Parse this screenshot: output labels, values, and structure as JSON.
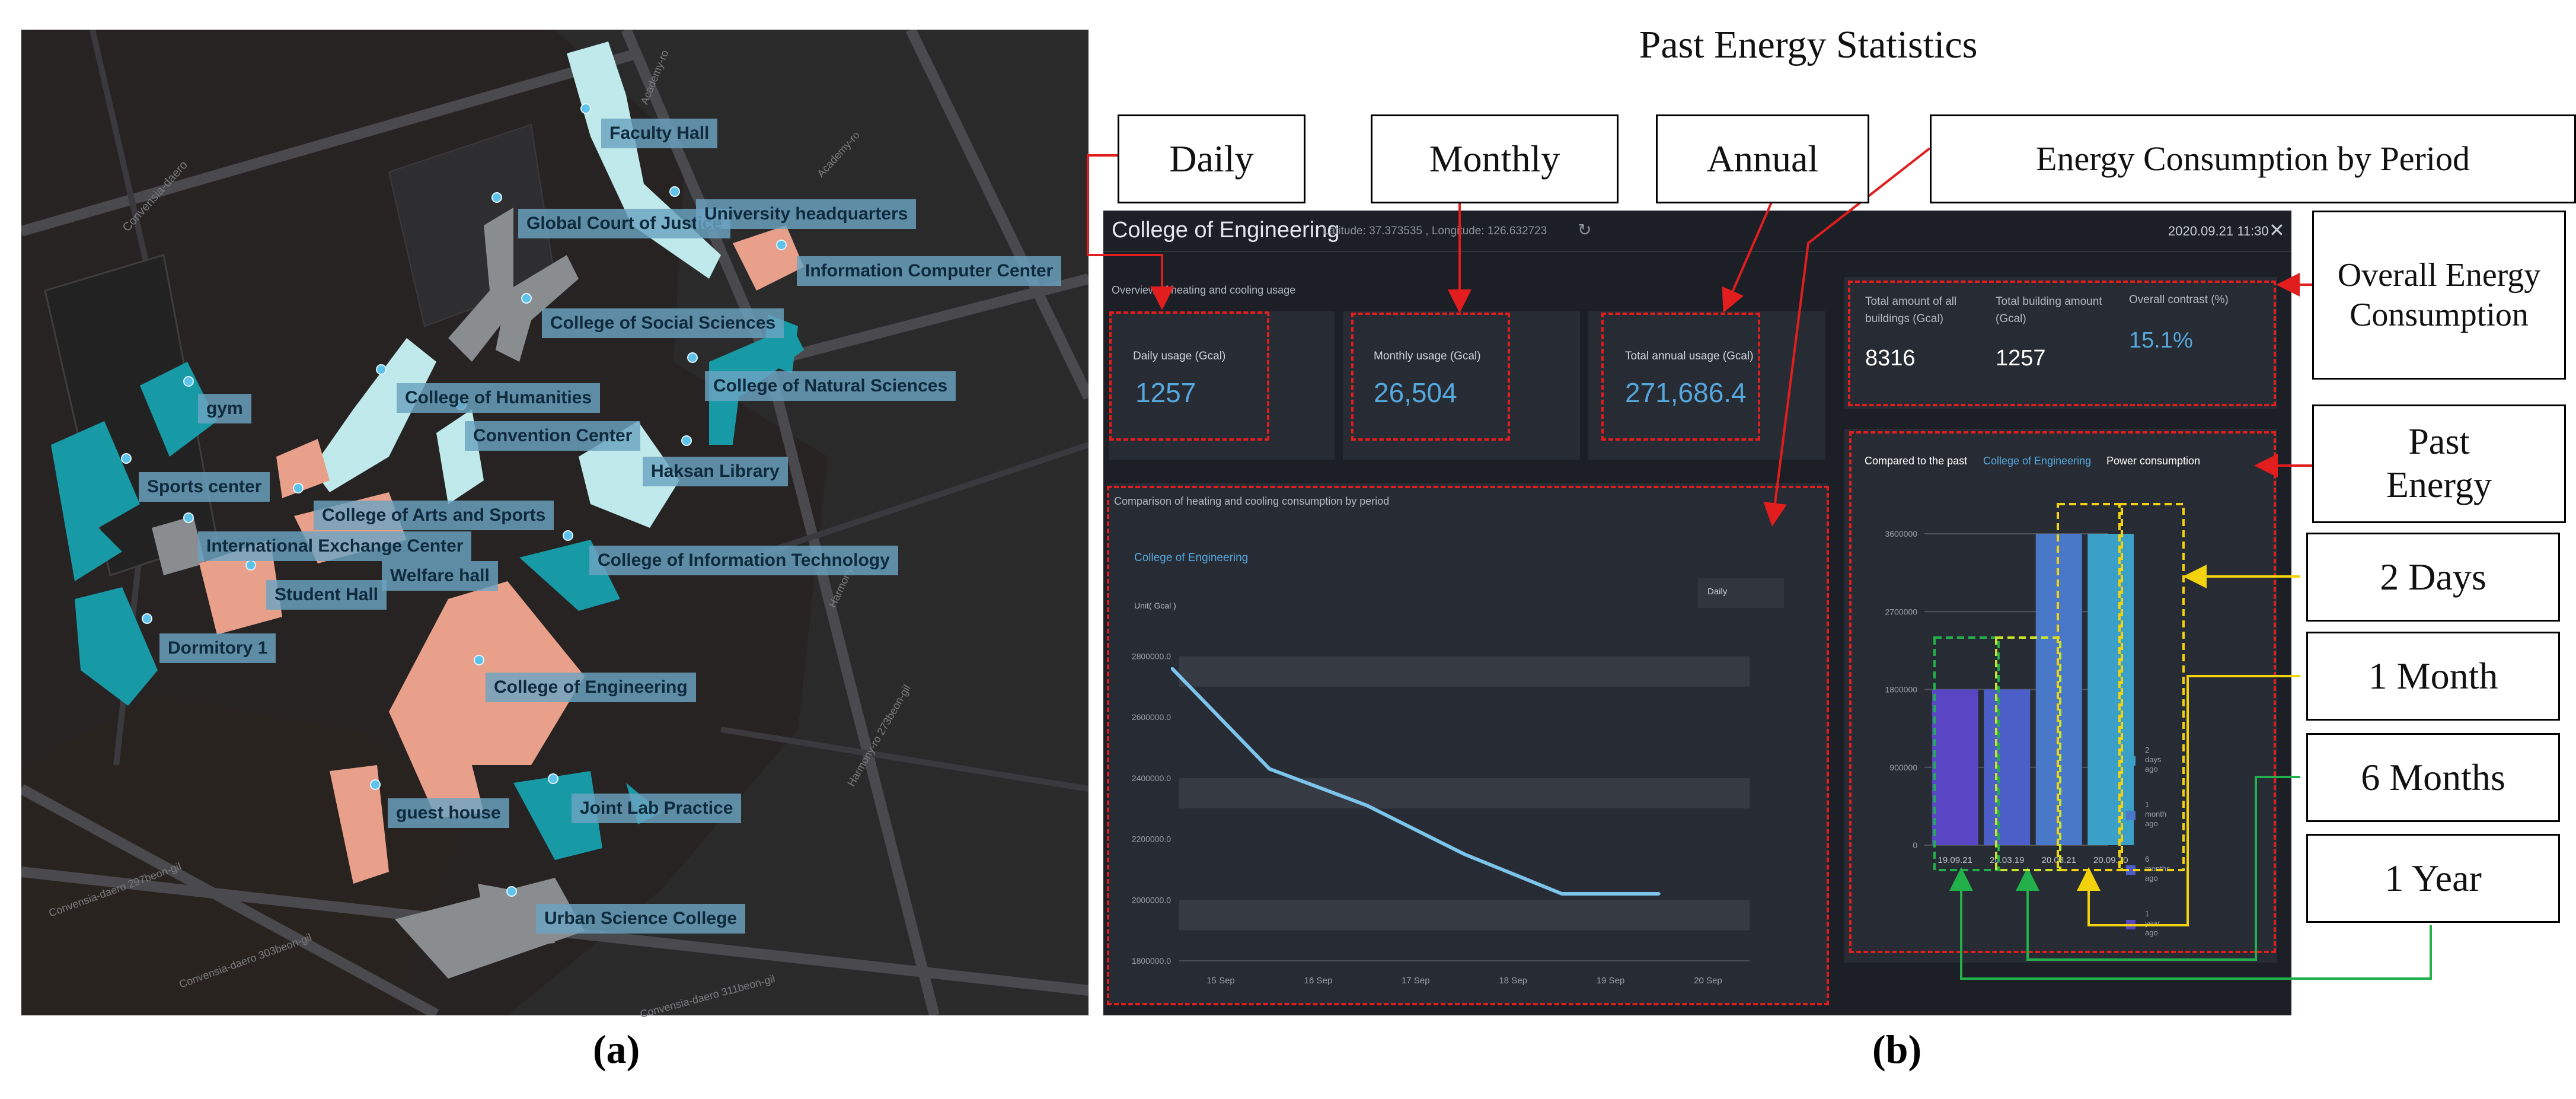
{
  "figure_title": "Past Energy Statistics",
  "panel_labels": {
    "a": "(a)",
    "b": "(b)"
  },
  "map": {
    "street_labels": [
      "Academy-ro",
      "Academy-ro",
      "Convensia-daero",
      "Harmony-ro",
      "Harmony-ro 273beon-gil",
      "Convensia-daero 297beon-gil",
      "Convensia-daero 303beon-gil",
      "Convensia-daero 311beon-gil"
    ],
    "buildings": [
      "Faculty Hall",
      "Global Court of Justice",
      "University headquarters",
      "Information Computer Center",
      "College of Social Sciences",
      "College of Natural Sciences",
      "gym",
      "College of Humanities",
      "Convention Center",
      "Haksan Library",
      "Sports center",
      "College of Arts and Sports",
      "International Exchange Center",
      "Welfare hall",
      "College of Information Technology",
      "Student Hall",
      "Dormitory 1",
      "College of Engineering",
      "guest house",
      "Joint Lab Practice",
      "Urban Science College"
    ]
  },
  "dashboard": {
    "header": {
      "title": "College of Engineering",
      "coords": "Latitude: 37.373535 , Longitude: 126.632723",
      "timestamp": "2020.09.21 11:30",
      "close_symbol": "✕",
      "refresh_symbol": "↻"
    },
    "overview_label": "Overview of heating and cooling usage",
    "daily": {
      "label": "Daily usage (Gcal)",
      "value": "1257"
    },
    "monthly": {
      "label": "Monthly usage (Gcal)",
      "value": "26,504"
    },
    "annual": {
      "label": "Total annual usage (Gcal)",
      "value": "271,686.4"
    },
    "overall": {
      "col1_label": "Total amount of all buildings (Gcal)",
      "col1_value": "8316",
      "col2_label": "Total building amount (Gcal)",
      "col2_value": "1257",
      "col3_label": "Overall contrast (%)",
      "col3_value": "15.1%"
    },
    "period_section_label": "Comparison of heating and cooling consumption by period",
    "line_chart_title": "College of Engineering",
    "dropdown_value": "Daily",
    "unit_label": "Unit( Gcal )",
    "past_label_pre": "Compared to the past",
    "past_label_building": "College of Engineering",
    "past_label_post": "Power consumption"
  },
  "callouts": {
    "daily": "Daily",
    "monthly": "Monthly",
    "annual": "Annual",
    "by_period": "Energy Consumption by Period",
    "overall": "Overall Energy Consumption",
    "past": "Past Energy",
    "two_days": "2 Days",
    "one_month": "1 Month",
    "six_months": "6 Months",
    "one_year": "1 Year"
  },
  "colors": {
    "accent_blue": "#55a8dc",
    "annotation_red": "#e11d1d",
    "annotation_yellow": "#f2d20c",
    "annotation_green": "#22b04a",
    "building_teal": "#1799a6",
    "building_salmon": "#e8a08a"
  },
  "chart_data": [
    {
      "type": "line",
      "title": "College of Engineering",
      "ylabel": "Unit( Gcal )",
      "x": [
        "15 Sep",
        "16 Sep",
        "17 Sep",
        "18 Sep",
        "19 Sep",
        "20 Sep"
      ],
      "y_ticks": [
        "1800000.0",
        "2000000.0",
        "2200000.0",
        "2400000.0",
        "2600000.0",
        "2800000.0"
      ],
      "ylim": [
        1800000,
        2900000
      ],
      "series": [
        {
          "points": [
            [
              14.5,
              2760000
            ],
            [
              15.5,
              2430000
            ],
            [
              16.5,
              2310000
            ],
            [
              17.5,
              2150000
            ],
            [
              18.5,
              2020000
            ],
            [
              19.5,
              2020000
            ]
          ]
        }
      ]
    },
    {
      "type": "bar",
      "title": "",
      "categories": [
        "19.09.21",
        "20.03.19",
        "20.08.21",
        "20.09.20"
      ],
      "y_ticks": [
        "0",
        "900000",
        "1800000",
        "2700000",
        "3600000"
      ],
      "ylim": [
        0,
        3600000
      ],
      "values": [
        1800000,
        1800000,
        3600000,
        3600000
      ],
      "legend": [
        "2 days ago",
        "1 month ago",
        "6 months ago",
        "1 year ago"
      ],
      "legend_colors": [
        "#3aa0c8",
        "#4a78c8",
        "#4c5ec8",
        "#5a45c4"
      ],
      "bar_colors": [
        "#5a45c4",
        "#4c5ec8",
        "#4a78c8",
        "#3aa0c8"
      ]
    }
  ]
}
